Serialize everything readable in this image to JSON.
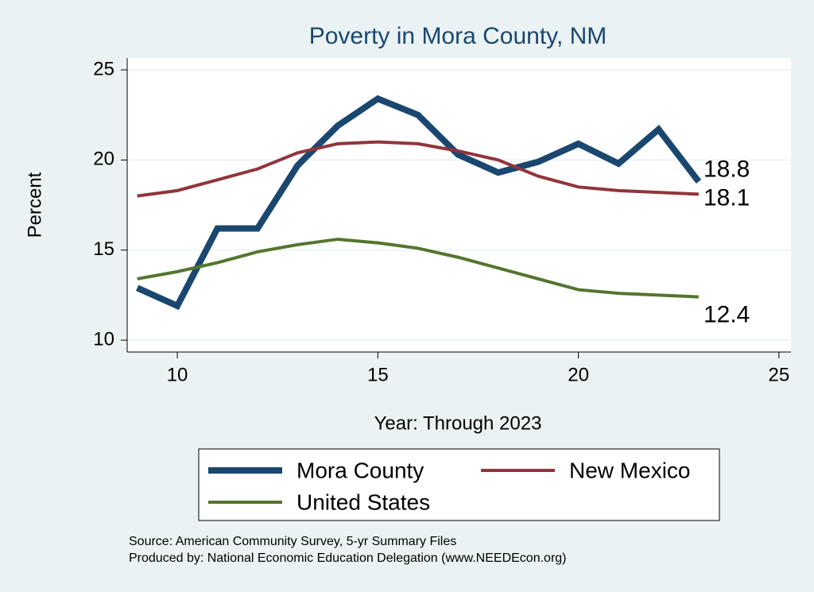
{
  "chart_data": {
    "type": "line",
    "title": "Poverty in Mora County, NM",
    "x_label": "Year: Through 2023",
    "y_label": "Percent",
    "x": [
      9,
      10,
      11,
      12,
      13,
      14,
      15,
      16,
      17,
      18,
      19,
      20,
      21,
      22,
      23
    ],
    "series": [
      {
        "name": "Mora County",
        "color": "#1a476f",
        "values": [
          12.9,
          11.9,
          16.2,
          16.2,
          19.7,
          21.9,
          23.4,
          22.5,
          20.3,
          19.3,
          19.9,
          20.9,
          19.8,
          21.7,
          18.8
        ]
      },
      {
        "name": "New Mexico",
        "color": "#90353b",
        "values": [
          18.0,
          18.3,
          18.9,
          19.5,
          20.4,
          20.9,
          21.0,
          20.9,
          20.5,
          20.0,
          19.1,
          18.5,
          18.3,
          18.2,
          18.1
        ]
      },
      {
        "name": "United States",
        "color": "#55752f",
        "values": [
          13.4,
          13.8,
          14.3,
          14.9,
          15.3,
          15.6,
          15.4,
          15.1,
          14.6,
          14.0,
          13.4,
          12.8,
          12.6,
          12.5,
          12.4
        ]
      }
    ],
    "xlim": [
      8.75,
      25.3
    ],
    "xticks": [
      10,
      15,
      20,
      25
    ],
    "ylim": [
      9.34,
      25.66
    ],
    "yticks": [
      10,
      15,
      20,
      25
    ],
    "grid": true,
    "notes": [
      "Source: American Community Survey, 5-yr Summary Files",
      "Produced by: National Economic Education Delegation (www.NEEDEcon.org)"
    ]
  }
}
